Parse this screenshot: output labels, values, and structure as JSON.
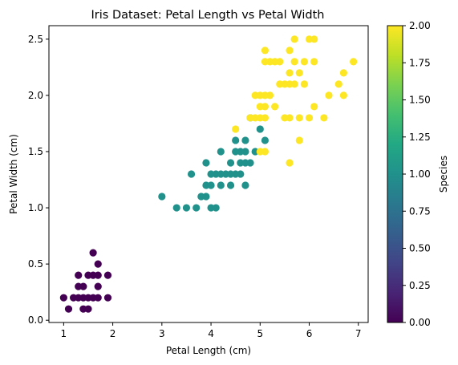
{
  "chart_data": {
    "type": "scatter",
    "title": "Iris Dataset: Petal Length vs Petal Width",
    "xlabel": "Petal Length (cm)",
    "ylabel": "Petal Width (cm)",
    "xlim": [
      0.7,
      7.2
    ],
    "ylim": [
      -0.02,
      2.62
    ],
    "xticks": [
      1,
      2,
      3,
      4,
      5,
      6,
      7
    ],
    "yticks": [
      0.0,
      0.5,
      1.0,
      1.5,
      2.0,
      2.5
    ],
    "ytick_labels": [
      "0.0",
      "0.5",
      "1.0",
      "1.5",
      "2.0",
      "2.5"
    ],
    "grid": false,
    "legend": "none",
    "colormap": "viridis",
    "colorbar": {
      "label": "Species",
      "range": [
        0.0,
        2.0
      ],
      "ticks": [
        0.0,
        0.25,
        0.5,
        0.75,
        1.0,
        1.25,
        1.5,
        1.75,
        2.0
      ],
      "tick_labels": [
        "0.00",
        "0.25",
        "0.50",
        "0.75",
        "1.00",
        "1.25",
        "1.50",
        "1.75",
        "2.00"
      ]
    },
    "colors": {
      "0": "#440154",
      "1": "#21918c",
      "2": "#fde725"
    },
    "points": [
      [
        1.0,
        0.2,
        0
      ],
      [
        1.1,
        0.1,
        0
      ],
      [
        1.2,
        0.2,
        0
      ],
      [
        1.3,
        0.2,
        0
      ],
      [
        1.3,
        0.3,
        0
      ],
      [
        1.3,
        0.4,
        0
      ],
      [
        1.4,
        0.1,
        0
      ],
      [
        1.4,
        0.2,
        0
      ],
      [
        1.4,
        0.3,
        0
      ],
      [
        1.5,
        0.1,
        0
      ],
      [
        1.5,
        0.2,
        0
      ],
      [
        1.5,
        0.4,
        0
      ],
      [
        1.6,
        0.2,
        0
      ],
      [
        1.6,
        0.4,
        0
      ],
      [
        1.6,
        0.6,
        0
      ],
      [
        1.7,
        0.2,
        0
      ],
      [
        1.7,
        0.3,
        0
      ],
      [
        1.7,
        0.4,
        0
      ],
      [
        1.7,
        0.5,
        0
      ],
      [
        1.9,
        0.2,
        0
      ],
      [
        1.9,
        0.4,
        0
      ],
      [
        3.0,
        1.1,
        1
      ],
      [
        3.3,
        1.0,
        1
      ],
      [
        3.5,
        1.0,
        1
      ],
      [
        3.6,
        1.3,
        1
      ],
      [
        3.7,
        1.0,
        1
      ],
      [
        3.8,
        1.1,
        1
      ],
      [
        3.9,
        1.1,
        1
      ],
      [
        3.9,
        1.2,
        1
      ],
      [
        3.9,
        1.4,
        1
      ],
      [
        4.0,
        1.0,
        1
      ],
      [
        4.0,
        1.2,
        1
      ],
      [
        4.0,
        1.3,
        1
      ],
      [
        4.1,
        1.0,
        1
      ],
      [
        4.1,
        1.3,
        1
      ],
      [
        4.2,
        1.2,
        1
      ],
      [
        4.2,
        1.3,
        1
      ],
      [
        4.2,
        1.5,
        1
      ],
      [
        4.3,
        1.3,
        1
      ],
      [
        4.4,
        1.2,
        1
      ],
      [
        4.4,
        1.3,
        1
      ],
      [
        4.4,
        1.4,
        1
      ],
      [
        4.5,
        1.3,
        1
      ],
      [
        4.5,
        1.5,
        1
      ],
      [
        4.5,
        1.6,
        1
      ],
      [
        4.6,
        1.3,
        1
      ],
      [
        4.6,
        1.4,
        1
      ],
      [
        4.6,
        1.5,
        1
      ],
      [
        4.7,
        1.2,
        1
      ],
      [
        4.7,
        1.4,
        1
      ],
      [
        4.7,
        1.5,
        1
      ],
      [
        4.7,
        1.6,
        1
      ],
      [
        4.8,
        1.4,
        1
      ],
      [
        4.8,
        1.8,
        1
      ],
      [
        4.9,
        1.5,
        1
      ],
      [
        5.0,
        1.7,
        1
      ],
      [
        5.1,
        1.6,
        1
      ],
      [
        4.5,
        1.7,
        2
      ],
      [
        4.8,
        1.8,
        2
      ],
      [
        4.9,
        1.8,
        2
      ],
      [
        4.9,
        2.0,
        2
      ],
      [
        5.0,
        1.5,
        2
      ],
      [
        5.0,
        1.8,
        2
      ],
      [
        5.0,
        2.0,
        2
      ],
      [
        5.1,
        1.5,
        2
      ],
      [
        5.1,
        1.8,
        2
      ],
      [
        5.1,
        1.9,
        2
      ],
      [
        5.1,
        2.0,
        2
      ],
      [
        5.1,
        2.3,
        2
      ],
      [
        5.1,
        2.4,
        2
      ],
      [
        5.0,
        1.9,
        2
      ],
      [
        5.2,
        2.0,
        2
      ],
      [
        5.2,
        2.3,
        2
      ],
      [
        5.3,
        1.9,
        2
      ],
      [
        5.3,
        2.3,
        2
      ],
      [
        5.4,
        2.1,
        2
      ],
      [
        5.4,
        2.3,
        2
      ],
      [
        5.5,
        1.8,
        2
      ],
      [
        5.5,
        2.1,
        2
      ],
      [
        5.6,
        1.4,
        2
      ],
      [
        5.6,
        1.8,
        2
      ],
      [
        5.6,
        2.1,
        2
      ],
      [
        5.6,
        2.2,
        2
      ],
      [
        5.6,
        2.4,
        2
      ],
      [
        5.7,
        2.1,
        2
      ],
      [
        5.7,
        2.3,
        2
      ],
      [
        5.7,
        2.5,
        2
      ],
      [
        5.8,
        1.6,
        2
      ],
      [
        5.8,
        1.8,
        2
      ],
      [
        5.8,
        2.2,
        2
      ],
      [
        5.9,
        2.1,
        2
      ],
      [
        5.9,
        2.3,
        2
      ],
      [
        6.0,
        1.8,
        2
      ],
      [
        6.0,
        2.5,
        2
      ],
      [
        6.1,
        1.9,
        2
      ],
      [
        6.1,
        2.3,
        2
      ],
      [
        6.1,
        2.5,
        2
      ],
      [
        6.3,
        1.8,
        2
      ],
      [
        6.4,
        2.0,
        2
      ],
      [
        6.6,
        2.1,
        2
      ],
      [
        6.7,
        2.0,
        2
      ],
      [
        6.7,
        2.2,
        2
      ],
      [
        6.9,
        2.3,
        2
      ]
    ]
  }
}
